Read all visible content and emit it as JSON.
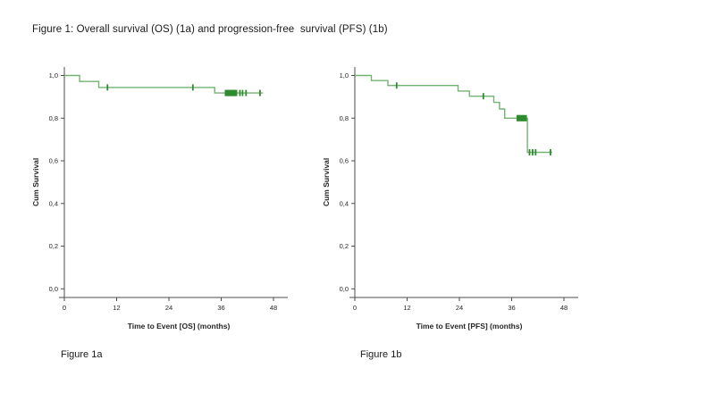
{
  "page": {
    "title": "Figure 1: Overall survival (OS) (1a) and progression-free  survival (PFS) (1b)"
  },
  "figures": [
    {
      "caption": "Figure 1a"
    },
    {
      "caption": "Figure 1b"
    }
  ],
  "colors": {
    "curve": "#74b274",
    "censor": "#2e8b2e",
    "axis": "#4d4d4d",
    "text": "#262626"
  },
  "chart_data": [
    {
      "type": "line",
      "subtype": "kaplan-meier-step",
      "name": "overall-survival",
      "xlabel": "Time to Event [OS] (months)",
      "ylabel": "Cum Survival",
      "xlim": [
        0,
        51
      ],
      "ylim": [
        0.0,
        1.05
      ],
      "xticks": [
        0,
        12,
        24,
        36,
        48
      ],
      "yticks": [
        0.0,
        0.2,
        0.4,
        0.6,
        0.8,
        1.0
      ],
      "ytick_labels": [
        "0,0",
        "0,2",
        "0,4",
        "0,6",
        "0,8",
        "1,0"
      ],
      "grid": false,
      "legend": "none",
      "steps": [
        [
          0,
          1.0
        ],
        [
          3.5,
          1.0
        ],
        [
          3.5,
          0.972
        ],
        [
          7.9,
          0.972
        ],
        [
          7.9,
          0.944
        ],
        [
          34.5,
          0.944
        ],
        [
          34.5,
          0.918
        ],
        [
          45.6,
          0.918
        ]
      ],
      "censor_marks": [
        [
          9.9,
          0.944
        ],
        [
          29.5,
          0.944
        ],
        [
          37.0,
          0.918
        ],
        [
          37.25,
          0.918
        ],
        [
          37.5,
          0.918
        ],
        [
          37.75,
          0.918
        ],
        [
          38.0,
          0.918
        ],
        [
          38.25,
          0.918
        ],
        [
          38.5,
          0.918
        ],
        [
          38.75,
          0.918
        ],
        [
          39.0,
          0.918
        ],
        [
          39.25,
          0.918
        ],
        [
          39.5,
          0.918
        ],
        [
          40.3,
          0.918
        ],
        [
          40.9,
          0.918
        ],
        [
          41.7,
          0.918
        ],
        [
          44.9,
          0.918
        ]
      ]
    },
    {
      "type": "line",
      "subtype": "kaplan-meier-step",
      "name": "progression-free-survival",
      "xlabel": "Time to Event [PFS] (months)",
      "ylabel": "Cum Survival",
      "xlim": [
        0,
        51
      ],
      "ylim": [
        0.0,
        1.05
      ],
      "xticks": [
        0,
        12,
        24,
        36,
        48
      ],
      "yticks": [
        0.0,
        0.2,
        0.4,
        0.6,
        0.8,
        1.0
      ],
      "ytick_labels": [
        "0,0",
        "0,2",
        "0,4",
        "0,6",
        "0,8",
        "1,0"
      ],
      "grid": false,
      "legend": "none",
      "steps": [
        [
          0,
          1.0
        ],
        [
          3.8,
          1.0
        ],
        [
          3.8,
          0.976
        ],
        [
          7.6,
          0.976
        ],
        [
          7.6,
          0.953
        ],
        [
          23.7,
          0.953
        ],
        [
          23.7,
          0.927
        ],
        [
          26.3,
          0.927
        ],
        [
          26.3,
          0.903
        ],
        [
          31.9,
          0.903
        ],
        [
          31.9,
          0.874
        ],
        [
          33.2,
          0.874
        ],
        [
          33.2,
          0.843
        ],
        [
          34.4,
          0.843
        ],
        [
          34.4,
          0.8
        ],
        [
          39.6,
          0.8
        ],
        [
          39.6,
          0.64
        ],
        [
          45.3,
          0.64
        ]
      ],
      "censor_marks": [
        [
          9.6,
          0.953
        ],
        [
          29.5,
          0.903
        ],
        [
          37.3,
          0.8
        ],
        [
          37.55,
          0.8
        ],
        [
          37.8,
          0.8
        ],
        [
          38.05,
          0.8
        ],
        [
          38.3,
          0.8
        ],
        [
          38.55,
          0.8
        ],
        [
          38.8,
          0.8
        ],
        [
          39.05,
          0.8
        ],
        [
          39.3,
          0.8
        ],
        [
          40.1,
          0.64
        ],
        [
          40.8,
          0.64
        ],
        [
          41.5,
          0.64
        ],
        [
          44.9,
          0.64
        ]
      ]
    }
  ]
}
